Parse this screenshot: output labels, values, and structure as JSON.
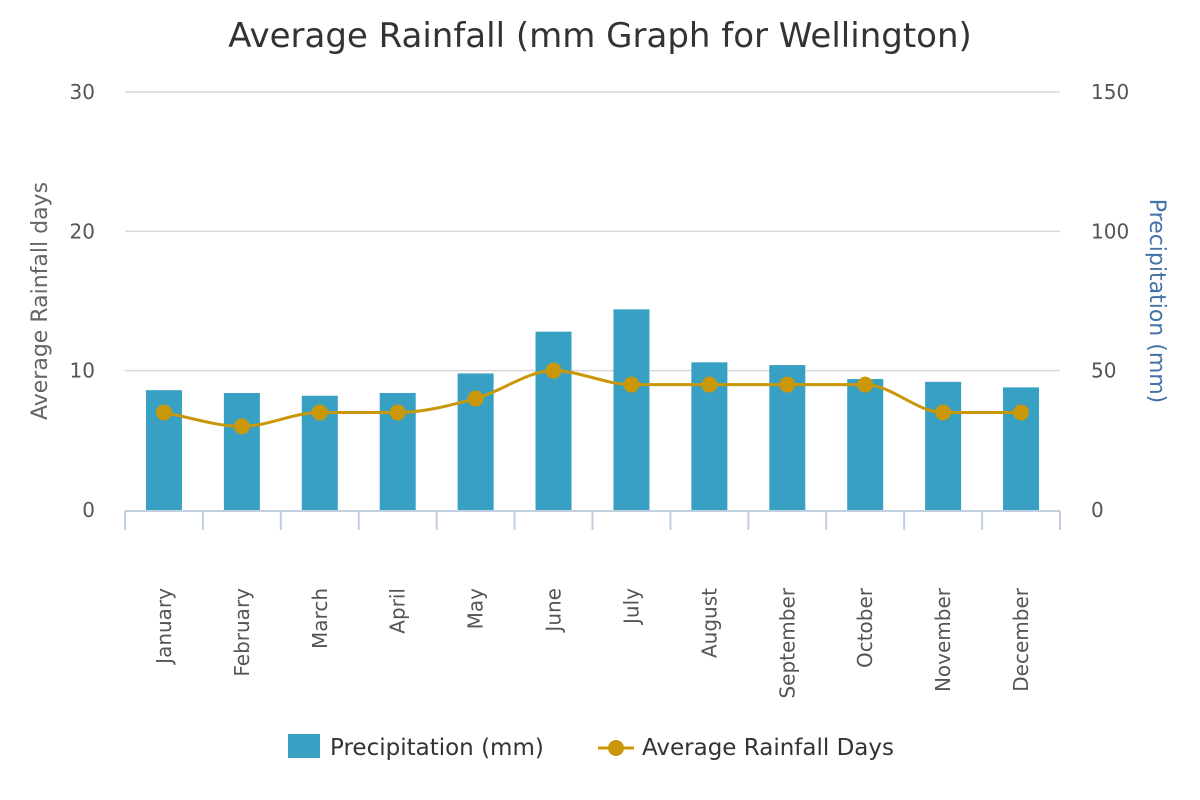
{
  "chart_data": {
    "type": "bar",
    "title": "Average Rainfall (mm Graph for Wellington)",
    "categories": [
      "January",
      "February",
      "March",
      "April",
      "May",
      "June",
      "July",
      "August",
      "September",
      "October",
      "November",
      "December"
    ],
    "series": [
      {
        "name": "Precipitation (mm)",
        "type": "bar",
        "axis": "right",
        "color": "#37A0C3",
        "values": [
          43,
          42,
          41,
          42,
          49,
          64,
          72,
          53,
          52,
          47,
          46,
          44
        ]
      },
      {
        "name": "Average Rainfall Days",
        "type": "line",
        "axis": "left",
        "color": "#C9980A",
        "values": [
          7,
          6,
          7,
          7,
          8,
          10,
          9,
          9,
          9,
          9,
          7,
          7
        ]
      }
    ],
    "left_axis": {
      "label": "Average Rainfall days",
      "ylim": [
        0,
        30
      ],
      "ticks": [
        "0",
        "10",
        "20",
        "30"
      ]
    },
    "right_axis": {
      "label": "Precipitation (mm)",
      "ylim": [
        0,
        150
      ],
      "ticks": [
        "0",
        "50",
        "100",
        "150"
      ],
      "label_color": "#4572A7"
    },
    "grid": true,
    "legend_position": "bottom"
  }
}
